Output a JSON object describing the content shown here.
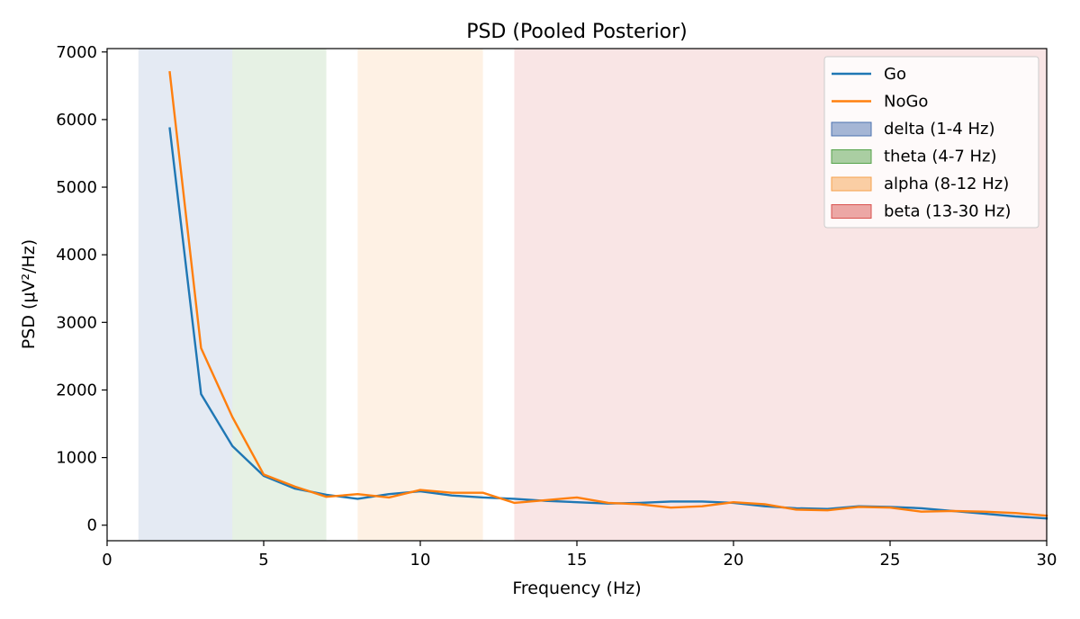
{
  "chart_data": {
    "type": "line",
    "title": "PSD (Pooled Posterior)",
    "xlabel": "Frequency (Hz)",
    "ylabel": "PSD (μV²/Hz)",
    "xlim": [
      0,
      30
    ],
    "ylim": [
      -230,
      7050
    ],
    "xticks": [
      0,
      5,
      10,
      15,
      20,
      25,
      30
    ],
    "yticks": [
      0,
      1000,
      2000,
      3000,
      4000,
      5000,
      6000,
      7000
    ],
    "grid": false,
    "legend_position": "top-right",
    "bands": [
      {
        "label": "delta (1-4 Hz)",
        "x0": 1,
        "x1": 4,
        "color": "#4c72b0"
      },
      {
        "label": "theta (4-7 Hz)",
        "x0": 4,
        "x1": 7,
        "color": "#55a24a"
      },
      {
        "label": "alpha (8-12 Hz)",
        "x0": 8,
        "x1": 12,
        "color": "#f5a14d"
      },
      {
        "label": "beta (13-30 Hz)",
        "x0": 13,
        "x1": 30,
        "color": "#d9534f"
      }
    ],
    "x": [
      2,
      3,
      4,
      5,
      6,
      7,
      8,
      9,
      10,
      11,
      12,
      13,
      14,
      15,
      16,
      17,
      18,
      19,
      20,
      21,
      22,
      23,
      24,
      25,
      26,
      27,
      28,
      29,
      30
    ],
    "series": [
      {
        "name": "Go",
        "color": "#1f77b4",
        "values": [
          5870,
          1940,
          1170,
          730,
          540,
          450,
          390,
          460,
          500,
          440,
          410,
          390,
          360,
          340,
          320,
          330,
          350,
          350,
          330,
          280,
          250,
          240,
          280,
          270,
          250,
          210,
          170,
          130,
          100
        ]
      },
      {
        "name": "NoGo",
        "color": "#ff7f0e",
        "values": [
          6700,
          2620,
          1600,
          750,
          570,
          420,
          460,
          410,
          520,
          480,
          480,
          330,
          370,
          410,
          330,
          310,
          260,
          280,
          340,
          310,
          230,
          220,
          270,
          260,
          200,
          210,
          200,
          180,
          140
        ]
      }
    ]
  }
}
